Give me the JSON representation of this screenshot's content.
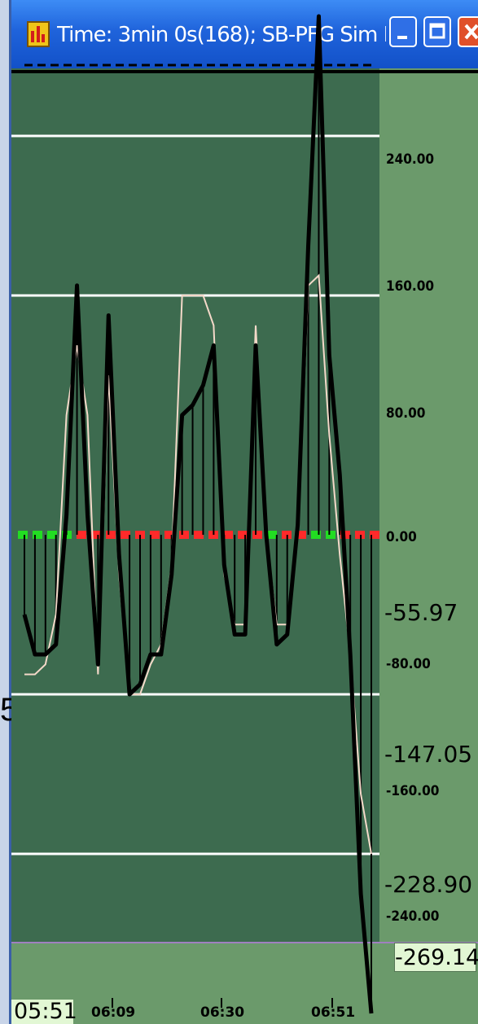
{
  "window": {
    "title": "Time: 3min 0s(168); SB-PFG Sim E...",
    "app_icon": "chart-app-icon",
    "buttons": {
      "minimize": "minimize-icon",
      "maximize": "maximize-icon",
      "close": "close-icon"
    }
  },
  "left_glyph": "5",
  "colors": {
    "plot_background": "#3d6b4f",
    "axis_background": "#6b9a6b",
    "gridline": "#ffffff",
    "primary_trace": "#000000",
    "secondary_trace": "#f4d9c9",
    "zero_line_green": "#22dd22",
    "zero_line_red": "#ff2a2a",
    "value_box": "#e2f7d4"
  },
  "axis": {
    "tick_labels": [
      "240.00",
      "160.00",
      "80.00",
      "0.00",
      "-80.00",
      "-160.00",
      "-240.00"
    ],
    "value_labels": [
      "-55.97",
      "-147.05",
      "-228.90"
    ],
    "cursor_value": "-269.14"
  },
  "time_axis": {
    "start": "05:51",
    "ticks": [
      "06:09",
      "06:30",
      "06:51"
    ]
  },
  "chart_data": {
    "type": "line",
    "ylim": [
      -240,
      275
    ],
    "grid": true,
    "gridline_values": [
      200,
      120,
      -80,
      -160
    ],
    "zero_reference": 0,
    "series": [
      {
        "values": [
          -40,
          -60,
          -60,
          -55,
          10,
          125,
          10,
          -65,
          110,
          -10,
          -80,
          -75,
          -60,
          -60,
          -20,
          60,
          65,
          75,
          95,
          -15,
          -50,
          -50,
          95,
          0,
          -55,
          -50,
          5,
          145,
          260,
          90,
          30,
          -60,
          -180,
          -240
        ]
      },
      {
        "values": [
          -70,
          -70,
          -65,
          -40,
          60,
          95,
          60,
          -70,
          80,
          -20,
          -80,
          -80,
          -65,
          -55,
          -15,
          120,
          120,
          120,
          105,
          -20,
          -45,
          -45,
          105,
          0,
          -45,
          -45,
          0,
          125,
          130,
          50,
          -10,
          -60,
          -130,
          -160
        ]
      }
    ]
  }
}
